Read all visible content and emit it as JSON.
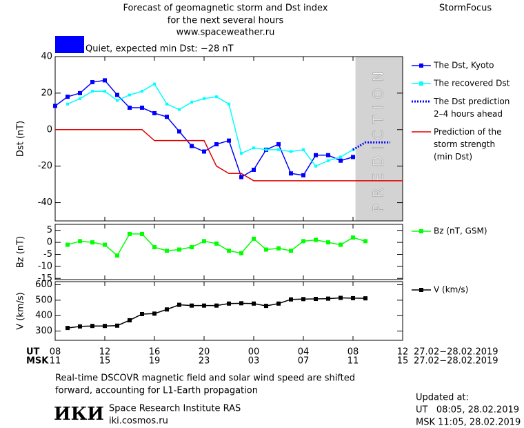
{
  "header": {
    "title_lines": [
      "Forecast of geomagnetic storm and Dst index",
      "for the next several hours",
      "www.spaceweather.ru"
    ],
    "brand": "StormFocus",
    "status": "Quiet, expected min Dst: −28 nT",
    "status_color": "#0000ff"
  },
  "chart_data": [
    {
      "type": "line",
      "ylabel": "Dst (nT)",
      "xlim": [
        8,
        36
      ],
      "ylim": [
        -50,
        40
      ],
      "yticks": [
        -40,
        -20,
        0,
        20,
        40
      ],
      "prediction_region": {
        "xlim": [
          32.2,
          36
        ],
        "label": "PREDICTION",
        "color": "#d3d3d3"
      },
      "series": [
        {
          "name": "The Dst, Kyoto",
          "color": "#0000ff",
          "marker": "square",
          "dash": false,
          "x": [
            8,
            9,
            10,
            11,
            12,
            13,
            14,
            15,
            16,
            17,
            18,
            19,
            20,
            21,
            22,
            23,
            24,
            25,
            26,
            27,
            28,
            29,
            30,
            31,
            32
          ],
          "values": [
            13,
            18,
            20,
            26,
            27,
            19,
            12,
            12,
            9,
            7,
            -1,
            -9,
            -12,
            -8,
            -6,
            -26,
            -22,
            -11,
            -8,
            -24,
            -25,
            -14,
            -14,
            -17,
            -15
          ]
        },
        {
          "name": "The recovered Dst",
          "color": "#00ffff",
          "marker": "square",
          "dash": false,
          "x": [
            9,
            10,
            11,
            12,
            13,
            14,
            15,
            16,
            17,
            18,
            19,
            20,
            21,
            22,
            23,
            24,
            25,
            26,
            27,
            28,
            29,
            30,
            31,
            32
          ],
          "values": [
            14,
            17,
            21,
            21,
            16,
            19,
            21,
            25,
            14,
            11,
            15,
            17,
            18,
            14,
            -13,
            -10,
            -11,
            -11,
            -12,
            -11,
            -20,
            -17,
            -15,
            -11
          ]
        },
        {
          "name": "The Dst prediction\n2–4 hours ahead",
          "color": "#0000ff",
          "marker": "none",
          "dash": true,
          "x": [
            32,
            33,
            35
          ],
          "values": [
            -11,
            -7,
            -7
          ]
        },
        {
          "name": "Prediction of the\nstorm strength\n(min Dst)",
          "color": "#e00000",
          "marker": "none",
          "dash": false,
          "x": [
            8,
            15,
            16,
            20,
            21,
            22,
            23,
            24,
            36
          ],
          "values": [
            0,
            0,
            -6,
            -6,
            -20,
            -24,
            -24,
            -28,
            -28
          ]
        }
      ]
    },
    {
      "type": "line",
      "ylabel": "Bz (nT)",
      "xlim": [
        8,
        36
      ],
      "ylim": [
        -15.5,
        7.5
      ],
      "yticks": [
        5,
        0,
        -5,
        -10,
        -15
      ],
      "series": [
        {
          "name": "Bz (nT, GSM)",
          "color": "#00ff00",
          "marker": "square",
          "dash": false,
          "x": [
            9,
            10,
            11,
            12,
            13,
            14,
            15,
            16,
            17,
            18,
            19,
            20,
            21,
            22,
            23,
            24,
            25,
            26,
            27,
            28,
            29,
            30,
            31,
            32,
            33
          ],
          "values": [
            -1,
            0.5,
            0,
            -1,
            -5.5,
            3.5,
            3.5,
            -2,
            -3.5,
            -3,
            -2,
            0.5,
            -0.5,
            -3.5,
            -4.5,
            1.5,
            -3,
            -2.5,
            -3.5,
            0.5,
            1,
            0,
            -1,
            2,
            0.5
          ]
        }
      ]
    },
    {
      "type": "line",
      "ylabel": "V (km/s)",
      "xlim": [
        8,
        36
      ],
      "ylim": [
        240,
        620
      ],
      "yticks": [
        300,
        400,
        500,
        600
      ],
      "xticks": [
        {
          "value": 8,
          "label": "08"
        },
        12,
        16,
        20,
        {
          "value": 24,
          "label": "00"
        },
        {
          "value": 28,
          "label": "04"
        },
        {
          "value": 32,
          "label": "08"
        },
        {
          "value": 36,
          "label": "12"
        }
      ],
      "x2ticks": [
        {
          "value": 8,
          "label": "11"
        },
        {
          "value": 12,
          "label": "15"
        },
        {
          "value": 16,
          "label": "19"
        },
        {
          "value": 20,
          "label": "23"
        },
        {
          "value": 24,
          "label": "03"
        },
        {
          "value": 28,
          "label": "07"
        },
        {
          "value": 32,
          "label": "11"
        },
        {
          "value": 36,
          "label": "15"
        }
      ],
      "xlabel": "UT",
      "x2label": "MSK",
      "xrange_label": "27.02−28.02.2019",
      "x2range_label": "27.02−28.02.2019",
      "series": [
        {
          "name": "V (km/s)",
          "color": "#000000",
          "marker": "square",
          "dash": false,
          "x": [
            9,
            10,
            11,
            12,
            13,
            14,
            15,
            16,
            17,
            18,
            19,
            20,
            21,
            22,
            23,
            24,
            25,
            26,
            27,
            28,
            29,
            30,
            31,
            32,
            33
          ],
          "values": [
            320,
            330,
            333,
            333,
            335,
            370,
            410,
            413,
            440,
            470,
            465,
            465,
            465,
            478,
            480,
            478,
            463,
            478,
            505,
            507,
            508,
            510,
            515,
            513,
            512
          ]
        }
      ]
    }
  ],
  "footer": {
    "note_lines": [
      "Real-time DSCOVR magnetic field and solar wind speed are shifted",
      "forward, accounting for L1-Earth propagation"
    ],
    "logo": "ИКИ",
    "institute": "Space Research Institute RAS",
    "site": "iki.cosmos.ru",
    "updated_label": "Updated at:",
    "updated_ut": "UT   08:05, 28.02.2019",
    "updated_msk": "MSK 11:05, 28.02.2019"
  }
}
